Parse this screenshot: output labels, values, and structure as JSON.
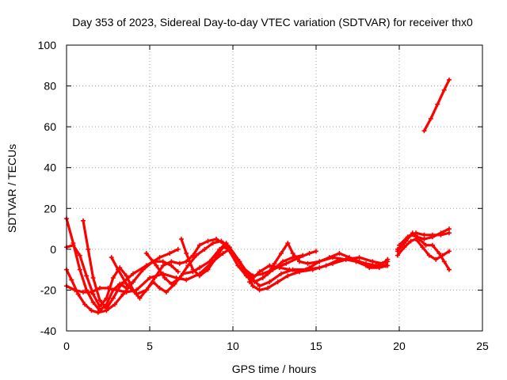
{
  "chart_data": {
    "type": "line",
    "title": "Day 353 of 2023, Sidereal Day-to-day VTEC variation (SDTVAR) for receiver thx0",
    "xlabel": "GPS time / hours",
    "ylabel": "SDTVAR / TECUs",
    "xlim": [
      0,
      25
    ],
    "ylim": [
      -40,
      100
    ],
    "xticks": [
      0,
      5,
      10,
      15,
      20,
      25
    ],
    "yticks": [
      -40,
      -20,
      0,
      20,
      40,
      60,
      80,
      100
    ],
    "xtick_labels": [
      "0",
      "5",
      "10",
      "15",
      "20",
      "25"
    ],
    "ytick_labels": [
      "-40",
      "-20",
      "0",
      "20",
      "40",
      "60",
      "80",
      "100"
    ],
    "grid": true,
    "legend": "none",
    "color": "#ff0000",
    "series": [
      {
        "name": "track-1",
        "points": [
          [
            0.0,
            15
          ],
          [
            0.4,
            3
          ],
          [
            0.8,
            -10
          ],
          [
            1.2,
            -20
          ],
          [
            1.6,
            -26
          ],
          [
            2.0,
            -30
          ],
          [
            2.4,
            -27
          ],
          [
            2.8,
            -20
          ],
          [
            3.2,
            -17
          ],
          [
            3.6,
            -19
          ]
        ]
      },
      {
        "name": "track-2",
        "points": [
          [
            1.0,
            14
          ],
          [
            1.3,
            0
          ],
          [
            1.6,
            -14
          ],
          [
            2.0,
            -25
          ],
          [
            2.4,
            -29
          ],
          [
            2.8,
            -24
          ],
          [
            3.3,
            -17
          ],
          [
            4.0,
            -12
          ],
          [
            4.8,
            -8
          ],
          [
            5.6,
            -4
          ],
          [
            6.2,
            -2
          ],
          [
            6.7,
            0
          ]
        ]
      },
      {
        "name": "track-3",
        "points": [
          [
            0.0,
            -10
          ],
          [
            0.3,
            -15
          ],
          [
            0.7,
            -22
          ],
          [
            1.1,
            -27
          ],
          [
            1.5,
            -30
          ],
          [
            1.9,
            -31
          ],
          [
            2.4,
            -30
          ],
          [
            2.9,
            -27
          ],
          [
            3.4,
            -22
          ],
          [
            4.0,
            -16
          ],
          [
            4.6,
            -10
          ],
          [
            5.2,
            -6
          ],
          [
            5.8,
            -6
          ],
          [
            6.3,
            -8
          ],
          [
            6.7,
            -11
          ]
        ]
      },
      {
        "name": "track-4",
        "points": [
          [
            0.0,
            -18
          ],
          [
            0.5,
            -20
          ],
          [
            1.0,
            -21
          ],
          [
            1.5,
            -21
          ],
          [
            2.0,
            -19
          ],
          [
            2.5,
            -19
          ],
          [
            3.0,
            -20
          ],
          [
            3.6,
            -21
          ],
          [
            4.2,
            -20
          ],
          [
            5.0,
            -14
          ],
          [
            5.8,
            -12
          ],
          [
            6.6,
            -14
          ],
          [
            7.2,
            -15
          ],
          [
            8.0,
            -12
          ],
          [
            8.8,
            -6
          ],
          [
            9.4,
            -2
          ],
          [
            9.8,
            0
          ]
        ]
      },
      {
        "name": "track-5",
        "points": [
          [
            0.0,
            1
          ],
          [
            0.4,
            2
          ],
          [
            0.8,
            -3
          ],
          [
            1.2,
            -13
          ],
          [
            1.6,
            -22
          ],
          [
            2.0,
            -28
          ],
          [
            2.4,
            -24
          ],
          [
            2.8,
            -14
          ],
          [
            3.2,
            -9
          ],
          [
            3.6,
            -13
          ],
          [
            4.0,
            -20
          ],
          [
            4.4,
            -24
          ],
          [
            4.8,
            -20
          ],
          [
            5.2,
            -16
          ],
          [
            5.6,
            -19
          ],
          [
            6.0,
            -21
          ],
          [
            6.5,
            -17
          ],
          [
            7.0,
            -12
          ],
          [
            7.6,
            -11
          ],
          [
            8.0,
            -9
          ],
          [
            8.6,
            -6
          ],
          [
            9.2,
            0
          ],
          [
            9.6,
            3
          ],
          [
            10.0,
            -2
          ],
          [
            10.6,
            -9
          ],
          [
            11.2,
            -13
          ],
          [
            11.8,
            -12
          ],
          [
            12.4,
            -10
          ],
          [
            13.2,
            -7
          ],
          [
            14.0,
            -4
          ],
          [
            14.6,
            -2
          ],
          [
            15.0,
            -1
          ]
        ]
      },
      {
        "name": "track-6",
        "points": [
          [
            2.7,
            -4
          ],
          [
            3.1,
            -10
          ],
          [
            3.6,
            -17
          ],
          [
            4.2,
            -22
          ],
          [
            4.8,
            -20
          ],
          [
            5.3,
            -14
          ],
          [
            5.8,
            -8
          ],
          [
            6.3,
            -6
          ],
          [
            6.8,
            -7
          ],
          [
            7.2,
            -6
          ],
          [
            7.6,
            -3
          ],
          [
            8.0,
            2
          ],
          [
            8.5,
            4
          ],
          [
            9.0,
            5
          ],
          [
            9.4,
            3
          ],
          [
            9.8,
            -1
          ],
          [
            10.3,
            -8
          ],
          [
            10.8,
            -13
          ],
          [
            11.3,
            -16
          ],
          [
            11.8,
            -14
          ],
          [
            12.4,
            -10
          ],
          [
            13.0,
            -6
          ],
          [
            13.6,
            -4
          ],
          [
            14.2,
            -3
          ]
        ]
      },
      {
        "name": "track-7",
        "points": [
          [
            4.8,
            -2
          ],
          [
            5.4,
            -8
          ],
          [
            5.9,
            -14
          ],
          [
            6.3,
            -17
          ],
          [
            6.8,
            -14
          ],
          [
            7.3,
            -8
          ],
          [
            7.8,
            -3
          ],
          [
            8.3,
            0
          ],
          [
            8.8,
            3
          ],
          [
            9.3,
            4
          ],
          [
            9.8,
            1
          ],
          [
            10.4,
            -6
          ],
          [
            11.0,
            -13
          ],
          [
            11.6,
            -18
          ],
          [
            12.2,
            -16
          ],
          [
            12.9,
            -12
          ],
          [
            13.6,
            -10
          ],
          [
            14.4,
            -10
          ],
          [
            15.2,
            -9
          ],
          [
            16.0,
            -7
          ],
          [
            16.8,
            -5
          ],
          [
            17.6,
            -4
          ],
          [
            18.4,
            -6
          ],
          [
            19.0,
            -7
          ],
          [
            19.3,
            -5
          ]
        ]
      },
      {
        "name": "track-8",
        "points": [
          [
            6.9,
            5
          ],
          [
            7.2,
            -2
          ],
          [
            7.6,
            -10
          ],
          [
            8.0,
            -13
          ],
          [
            8.5,
            -10
          ],
          [
            9.0,
            -4
          ],
          [
            9.4,
            1
          ],
          [
            9.8,
            0
          ],
          [
            10.3,
            -5
          ],
          [
            10.8,
            -12
          ],
          [
            11.2,
            -18
          ],
          [
            11.6,
            -20
          ],
          [
            12.1,
            -19
          ],
          [
            12.7,
            -16
          ],
          [
            13.3,
            -13
          ],
          [
            14.0,
            -11
          ],
          [
            14.8,
            -10
          ],
          [
            15.6,
            -8
          ],
          [
            16.4,
            -5
          ],
          [
            17.2,
            -5
          ],
          [
            18.0,
            -7
          ],
          [
            18.6,
            -8
          ],
          [
            19.2,
            -8
          ],
          [
            19.3,
            -5
          ]
        ]
      },
      {
        "name": "track-9",
        "points": [
          [
            11.0,
            -16
          ],
          [
            11.6,
            -11
          ],
          [
            12.2,
            -8
          ],
          [
            12.8,
            -9
          ],
          [
            13.4,
            -10
          ],
          [
            14.0,
            -11
          ],
          [
            14.6,
            -9
          ],
          [
            15.2,
            -6
          ],
          [
            15.8,
            -4
          ],
          [
            16.4,
            -2
          ],
          [
            17.0,
            -4
          ],
          [
            17.6,
            -6
          ],
          [
            18.2,
            -9
          ],
          [
            18.8,
            -9
          ],
          [
            19.3,
            -8
          ]
        ]
      },
      {
        "name": "track-10",
        "points": [
          [
            12.1,
            -12
          ],
          [
            12.5,
            -7
          ],
          [
            12.9,
            -2
          ],
          [
            13.3,
            3
          ],
          [
            13.6,
            -2
          ],
          [
            14.0,
            -6
          ],
          [
            14.5,
            -7
          ],
          [
            15.2,
            -6
          ],
          [
            16.0,
            -4
          ],
          [
            16.8,
            -5
          ],
          [
            17.4,
            -6
          ],
          [
            18.0,
            -8
          ],
          [
            18.6,
            -8
          ],
          [
            19.3,
            -6
          ]
        ]
      },
      {
        "name": "track-11",
        "points": [
          [
            19.9,
            0
          ],
          [
            20.3,
            3
          ],
          [
            20.7,
            7
          ],
          [
            21.1,
            6
          ],
          [
            21.5,
            5
          ],
          [
            22.0,
            6
          ],
          [
            22.5,
            8
          ],
          [
            23.0,
            10
          ]
        ]
      },
      {
        "name": "track-12",
        "points": [
          [
            19.9,
            -3
          ],
          [
            20.3,
            1
          ],
          [
            20.7,
            4
          ],
          [
            21.0,
            5
          ],
          [
            21.4,
            1
          ],
          [
            21.8,
            -3
          ],
          [
            22.2,
            -5
          ],
          [
            22.6,
            -3
          ],
          [
            23.0,
            -1
          ]
        ]
      },
      {
        "name": "track-13",
        "points": [
          [
            19.9,
            -1
          ],
          [
            20.4,
            4
          ],
          [
            20.8,
            8
          ],
          [
            21.2,
            5
          ],
          [
            21.6,
            2
          ],
          [
            22.0,
            2
          ],
          [
            22.4,
            -2
          ],
          [
            22.7,
            -6
          ],
          [
            23.0,
            -10
          ]
        ]
      },
      {
        "name": "track-14",
        "points": [
          [
            20.0,
            2
          ],
          [
            20.5,
            6
          ],
          [
            21.0,
            8
          ],
          [
            21.5,
            7
          ],
          [
            22.0,
            7
          ],
          [
            22.5,
            7
          ],
          [
            23.0,
            8
          ]
        ]
      },
      {
        "name": "track-15",
        "points": [
          [
            21.5,
            58
          ],
          [
            21.9,
            64
          ],
          [
            22.3,
            71
          ],
          [
            22.7,
            78
          ],
          [
            23.0,
            83
          ]
        ]
      }
    ]
  }
}
